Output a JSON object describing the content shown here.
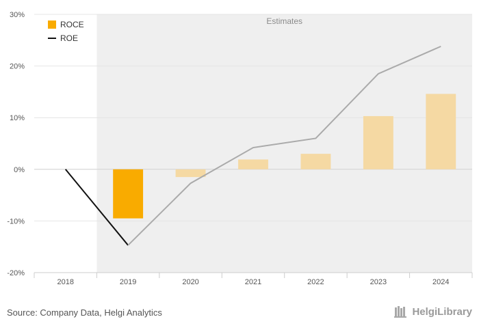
{
  "chart_data": {
    "type": "bar",
    "categories": [
      "2018",
      "2019",
      "2020",
      "2021",
      "2022",
      "2023",
      "2024"
    ],
    "series": [
      {
        "name": "ROCE",
        "kind": "bar",
        "color": "#f9ab00",
        "estimate_color": "#f5d9a3",
        "values": [
          null,
          -9.5,
          -1.5,
          1.9,
          3.0,
          10.3,
          14.6
        ]
      },
      {
        "name": "ROE",
        "kind": "line",
        "color": "#111111",
        "estimate_color": "#aaaaaa",
        "values": [
          0.0,
          -14.7,
          -2.7,
          4.2,
          6.0,
          18.5,
          23.8
        ]
      }
    ],
    "estimates_start_index": 1,
    "estimates_label": "Estimates",
    "ylim": [
      -20,
      30
    ],
    "yticks": [
      -20,
      -10,
      0,
      10,
      20,
      30
    ],
    "ytick_labels": [
      "-20%",
      "-10%",
      "0%",
      "10%",
      "20%",
      "30%"
    ],
    "grid": true,
    "legend_position": "top-left"
  },
  "footer": {
    "source": "Source: Company Data, Helgi Analytics",
    "logo_text": "HelgiLibrary"
  }
}
